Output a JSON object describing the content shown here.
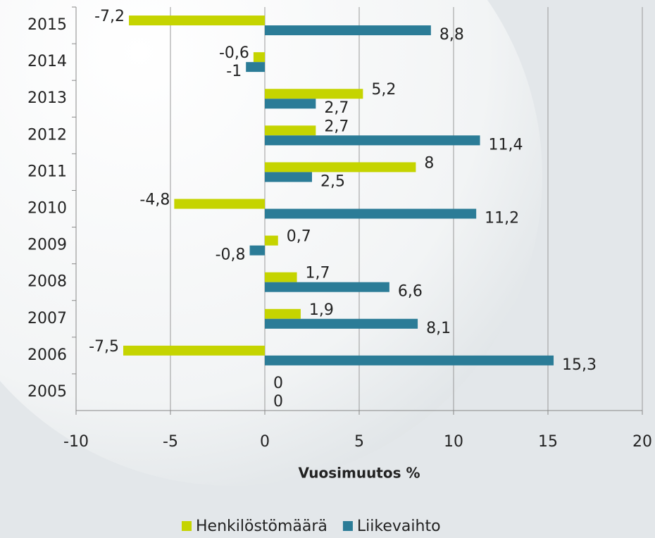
{
  "chart_data": {
    "type": "hbar",
    "categories": [
      "2015",
      "2014",
      "2013",
      "2012",
      "2011",
      "2010",
      "2009",
      "2008",
      "2007",
      "2006",
      "2005"
    ],
    "series": [
      {
        "name": "Henkilöstömäärä",
        "color": "#c5d400",
        "values": [
          -7.2,
          -0.6,
          5.2,
          2.7,
          8,
          -4.8,
          0.7,
          1.7,
          1.9,
          -7.5,
          0
        ],
        "value_labels": [
          "-7,2",
          "-0,6",
          "5,2",
          "2,7",
          "8",
          "-4,8",
          "0,7",
          "1,7",
          "1,9",
          "-7,5",
          "0"
        ]
      },
      {
        "name": "Liikevaihto",
        "color": "#2b7c97",
        "values": [
          8.8,
          -1,
          2.7,
          11.4,
          2.5,
          11.2,
          -0.8,
          6.6,
          8.1,
          15.3,
          0
        ],
        "value_labels": [
          "8,8",
          "-1",
          "2,7",
          "11,4",
          "2,5",
          "11,2",
          "-0,8",
          "6,6",
          "8,1",
          "15,3",
          "0"
        ]
      }
    ],
    "xlabel": "Vuosimuutos %",
    "xlim": [
      -10,
      20
    ],
    "xticks": [
      -10,
      -5,
      0,
      5,
      10,
      15,
      20
    ],
    "grid": true,
    "legend": "bottom"
  }
}
